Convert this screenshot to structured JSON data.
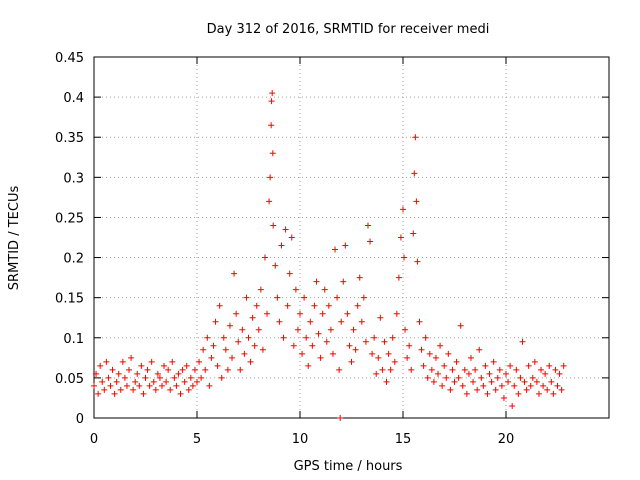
{
  "chart_data": {
    "type": "scatter",
    "title": "Day 312 of 2016, SRMTID for receiver medi",
    "xlabel": "GPS time / hours",
    "ylabel": "SRMTID / TECUs",
    "xlim": [
      0,
      25
    ],
    "ylim": [
      0,
      0.45
    ],
    "xticks": [
      0,
      5,
      10,
      15,
      20
    ],
    "xtick_labels": [
      "0",
      "5",
      "10",
      "15",
      "20"
    ],
    "yticks": [
      0,
      0.05,
      0.1,
      0.15,
      0.2,
      0.25,
      0.3,
      0.35,
      0.4,
      0.45
    ],
    "ytick_labels": [
      "0",
      "0.05",
      "0.1",
      "0.15",
      "0.2",
      "0.25",
      "0.3",
      "0.35",
      "0.4",
      "0.45"
    ],
    "grid": true,
    "marker": "+",
    "series": [
      {
        "name": "SRMTID",
        "color": "#ff0000",
        "points": [
          [
            0.0,
            0.04
          ],
          [
            0.1,
            0.055
          ],
          [
            0.2,
            0.03
          ],
          [
            0.3,
            0.065
          ],
          [
            0.4,
            0.045
          ],
          [
            0.5,
            0.035
          ],
          [
            0.6,
            0.07
          ],
          [
            0.7,
            0.05
          ],
          [
            0.8,
            0.04
          ],
          [
            0.9,
            0.06
          ],
          [
            1.0,
            0.03
          ],
          [
            1.1,
            0.045
          ],
          [
            1.2,
            0.055
          ],
          [
            1.3,
            0.035
          ],
          [
            1.4,
            0.07
          ],
          [
            1.5,
            0.05
          ],
          [
            1.6,
            0.04
          ],
          [
            1.7,
            0.06
          ],
          [
            1.8,
            0.075
          ],
          [
            1.9,
            0.035
          ],
          [
            2.0,
            0.045
          ],
          [
            2.1,
            0.055
          ],
          [
            2.2,
            0.04
          ],
          [
            2.3,
            0.065
          ],
          [
            2.4,
            0.03
          ],
          [
            2.5,
            0.05
          ],
          [
            2.6,
            0.06
          ],
          [
            2.7,
            0.04
          ],
          [
            2.8,
            0.07
          ],
          [
            2.9,
            0.045
          ],
          [
            3.0,
            0.035
          ],
          [
            3.1,
            0.055
          ],
          [
            3.2,
            0.05
          ],
          [
            3.3,
            0.04
          ],
          [
            3.4,
            0.065
          ],
          [
            3.5,
            0.045
          ],
          [
            3.6,
            0.06
          ],
          [
            3.7,
            0.035
          ],
          [
            3.8,
            0.07
          ],
          [
            3.9,
            0.05
          ],
          [
            4.0,
            0.04
          ],
          [
            4.1,
            0.055
          ],
          [
            4.2,
            0.03
          ],
          [
            4.3,
            0.06
          ],
          [
            4.4,
            0.045
          ],
          [
            4.5,
            0.065
          ],
          [
            4.6,
            0.035
          ],
          [
            4.7,
            0.05
          ],
          [
            4.8,
            0.04
          ],
          [
            4.9,
            0.06
          ],
          [
            5.0,
            0.045
          ],
          [
            5.1,
            0.07
          ],
          [
            5.2,
            0.05
          ],
          [
            5.3,
            0.085
          ],
          [
            5.4,
            0.06
          ],
          [
            5.5,
            0.1
          ],
          [
            5.6,
            0.04
          ],
          [
            5.7,
            0.075
          ],
          [
            5.8,
            0.09
          ],
          [
            5.9,
            0.12
          ],
          [
            6.0,
            0.065
          ],
          [
            6.1,
            0.14
          ],
          [
            6.2,
            0.05
          ],
          [
            6.3,
            0.1
          ],
          [
            6.4,
            0.085
          ],
          [
            6.5,
            0.06
          ],
          [
            6.6,
            0.115
          ],
          [
            6.7,
            0.075
          ],
          [
            6.8,
            0.18
          ],
          [
            6.9,
            0.13
          ],
          [
            7.0,
            0.095
          ],
          [
            7.1,
            0.06
          ],
          [
            7.2,
            0.11
          ],
          [
            7.3,
            0.08
          ],
          [
            7.4,
            0.15
          ],
          [
            7.5,
            0.1
          ],
          [
            7.6,
            0.07
          ],
          [
            7.7,
            0.125
          ],
          [
            7.8,
            0.09
          ],
          [
            7.9,
            0.14
          ],
          [
            8.0,
            0.11
          ],
          [
            8.1,
            0.16
          ],
          [
            8.2,
            0.085
          ],
          [
            8.3,
            0.2
          ],
          [
            8.4,
            0.13
          ],
          [
            8.5,
            0.27
          ],
          [
            8.55,
            0.3
          ],
          [
            8.6,
            0.365
          ],
          [
            8.62,
            0.395
          ],
          [
            8.65,
            0.405
          ],
          [
            8.68,
            0.33
          ],
          [
            8.7,
            0.24
          ],
          [
            8.8,
            0.19
          ],
          [
            8.9,
            0.15
          ],
          [
            9.0,
            0.12
          ],
          [
            9.1,
            0.215
          ],
          [
            9.2,
            0.1
          ],
          [
            9.3,
            0.235
          ],
          [
            9.4,
            0.14
          ],
          [
            9.5,
            0.18
          ],
          [
            9.6,
            0.225
          ],
          [
            9.7,
            0.09
          ],
          [
            9.8,
            0.16
          ],
          [
            9.9,
            0.11
          ],
          [
            10.0,
            0.13
          ],
          [
            10.1,
            0.08
          ],
          [
            10.2,
            0.15
          ],
          [
            10.3,
            0.1
          ],
          [
            10.4,
            0.065
          ],
          [
            10.5,
            0.12
          ],
          [
            10.6,
            0.09
          ],
          [
            10.7,
            0.14
          ],
          [
            10.8,
            0.17
          ],
          [
            10.9,
            0.105
          ],
          [
            11.0,
            0.075
          ],
          [
            11.1,
            0.13
          ],
          [
            11.2,
            0.16
          ],
          [
            11.3,
            0.095
          ],
          [
            11.4,
            0.14
          ],
          [
            11.5,
            0.11
          ],
          [
            11.6,
            0.08
          ],
          [
            11.7,
            0.21
          ],
          [
            11.8,
            0.15
          ],
          [
            11.9,
            0.06
          ],
          [
            11.95,
            0.0
          ],
          [
            12.0,
            0.12
          ],
          [
            12.1,
            0.17
          ],
          [
            12.2,
            0.215
          ],
          [
            12.3,
            0.13
          ],
          [
            12.4,
            0.09
          ],
          [
            12.5,
            0.07
          ],
          [
            12.6,
            0.11
          ],
          [
            12.7,
            0.085
          ],
          [
            12.8,
            0.14
          ],
          [
            12.9,
            0.175
          ],
          [
            13.0,
            0.12
          ],
          [
            13.1,
            0.15
          ],
          [
            13.2,
            0.095
          ],
          [
            13.3,
            0.24
          ],
          [
            13.4,
            0.22
          ],
          [
            13.5,
            0.08
          ],
          [
            13.6,
            0.1
          ],
          [
            13.7,
            0.055
          ],
          [
            13.8,
            0.075
          ],
          [
            13.9,
            0.125
          ],
          [
            14.0,
            0.06
          ],
          [
            14.1,
            0.095
          ],
          [
            14.2,
            0.045
          ],
          [
            14.3,
            0.08
          ],
          [
            14.4,
            0.06
          ],
          [
            14.5,
            0.1
          ],
          [
            14.6,
            0.07
          ],
          [
            14.7,
            0.13
          ],
          [
            14.8,
            0.175
          ],
          [
            14.9,
            0.225
          ],
          [
            15.0,
            0.26
          ],
          [
            15.05,
            0.2
          ],
          [
            15.1,
            0.11
          ],
          [
            15.2,
            0.075
          ],
          [
            15.3,
            0.09
          ],
          [
            15.4,
            0.06
          ],
          [
            15.5,
            0.23
          ],
          [
            15.55,
            0.305
          ],
          [
            15.6,
            0.35
          ],
          [
            15.65,
            0.27
          ],
          [
            15.7,
            0.195
          ],
          [
            15.8,
            0.12
          ],
          [
            15.9,
            0.085
          ],
          [
            16.0,
            0.065
          ],
          [
            16.1,
            0.1
          ],
          [
            16.2,
            0.05
          ],
          [
            16.3,
            0.08
          ],
          [
            16.4,
            0.06
          ],
          [
            16.5,
            0.045
          ],
          [
            16.6,
            0.075
          ],
          [
            16.7,
            0.055
          ],
          [
            16.8,
            0.09
          ],
          [
            16.9,
            0.04
          ],
          [
            17.0,
            0.065
          ],
          [
            17.1,
            0.05
          ],
          [
            17.2,
            0.08
          ],
          [
            17.3,
            0.035
          ],
          [
            17.4,
            0.06
          ],
          [
            17.5,
            0.045
          ],
          [
            17.6,
            0.07
          ],
          [
            17.7,
            0.05
          ],
          [
            17.8,
            0.115
          ],
          [
            17.9,
            0.04
          ],
          [
            18.0,
            0.06
          ],
          [
            18.1,
            0.03
          ],
          [
            18.2,
            0.055
          ],
          [
            18.3,
            0.075
          ],
          [
            18.4,
            0.045
          ],
          [
            18.5,
            0.06
          ],
          [
            18.6,
            0.035
          ],
          [
            18.7,
            0.085
          ],
          [
            18.8,
            0.05
          ],
          [
            18.9,
            0.04
          ],
          [
            19.0,
            0.065
          ],
          [
            19.1,
            0.03
          ],
          [
            19.2,
            0.055
          ],
          [
            19.3,
            0.045
          ],
          [
            19.4,
            0.07
          ],
          [
            19.5,
            0.035
          ],
          [
            19.6,
            0.05
          ],
          [
            19.7,
            0.06
          ],
          [
            19.8,
            0.04
          ],
          [
            19.9,
            0.025
          ],
          [
            20.0,
            0.055
          ],
          [
            20.1,
            0.045
          ],
          [
            20.2,
            0.065
          ],
          [
            20.3,
            0.015
          ],
          [
            20.4,
            0.04
          ],
          [
            20.5,
            0.06
          ],
          [
            20.6,
            0.03
          ],
          [
            20.7,
            0.05
          ],
          [
            20.8,
            0.095
          ],
          [
            20.9,
            0.045
          ],
          [
            21.0,
            0.035
          ],
          [
            21.1,
            0.065
          ],
          [
            21.2,
            0.04
          ],
          [
            21.3,
            0.05
          ],
          [
            21.4,
            0.07
          ],
          [
            21.5,
            0.045
          ],
          [
            21.6,
            0.03
          ],
          [
            21.7,
            0.06
          ],
          [
            21.8,
            0.04
          ],
          [
            21.9,
            0.055
          ],
          [
            22.0,
            0.035
          ],
          [
            22.1,
            0.065
          ],
          [
            22.2,
            0.045
          ],
          [
            22.3,
            0.03
          ],
          [
            22.4,
            0.06
          ],
          [
            22.5,
            0.04
          ],
          [
            22.6,
            0.055
          ],
          [
            22.7,
            0.035
          ],
          [
            22.8,
            0.065
          ]
        ]
      }
    ]
  }
}
